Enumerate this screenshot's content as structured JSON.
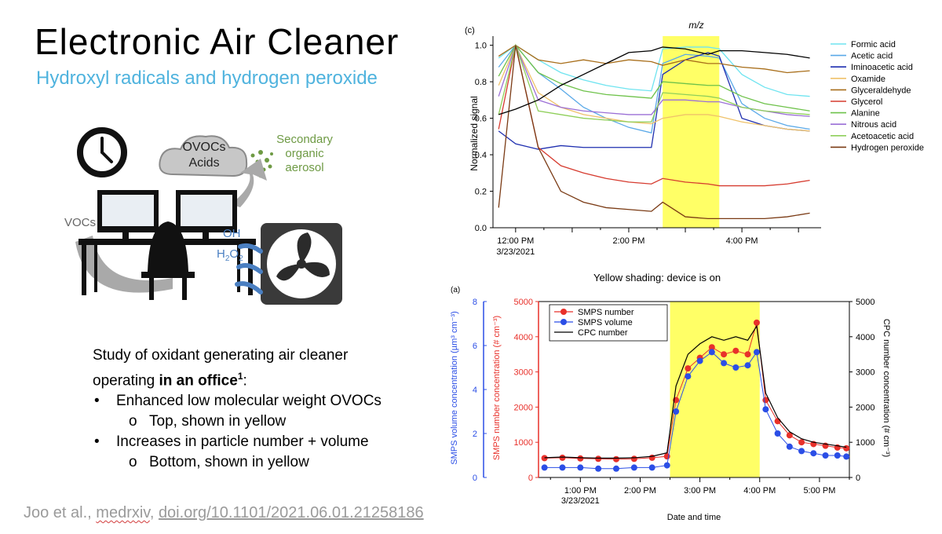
{
  "slide": {
    "title": "Electronic Air Cleaner",
    "subtitle": "Hydroxyl radicals and hydrogen peroxide",
    "study": {
      "intro_line1": "Study of oxidant generating air cleaner",
      "intro_line2_pre": "operating ",
      "intro_line2_bold": "in an office",
      "intro_line2_sup": "1",
      "intro_line2_post": ":",
      "bullet1": "Enhanced low molecular weight OVOCs",
      "sub1": "Top, shown in yellow",
      "bullet2": "Increases in particle number + volume",
      "sub2": "Bottom, shown in yellow",
      "bullet_glyph": "•",
      "sub_glyph": "o"
    },
    "citation": {
      "authors": "Joo et al., ",
      "source": "medrxiv",
      "sep": ", ",
      "doi": "doi.org/10.1101/2021.06.01.21258186"
    },
    "shading_note": "Yellow shading: device is on",
    "illustration": {
      "cloud_line1": "OVOCs",
      "cloud_line2": "Acids",
      "soa_line1": "Secondary",
      "soa_line2": "organic",
      "soa_line3": "aerosol",
      "vocs": "VOCs",
      "oh": "OH",
      "h2o2_base": "H",
      "h2o2_sub": "2",
      "h2o2_o": "O",
      "h2o2_sub2": "2",
      "icons": [
        "clock-icon",
        "cloud-icon",
        "monitor-icon",
        "chair-icon",
        "desk-icon",
        "fan-icon",
        "arrow-icon",
        "aerosol-dots-icon"
      ]
    },
    "colors": {
      "subtitle": "#4fb3de",
      "highlight": "#ffff66",
      "soa_green": "#6e9a44",
      "oh_blue": "#4a7fc1"
    }
  },
  "chart_data": [
    {
      "type": "line",
      "panel_label": "(c)",
      "title": "m/z",
      "xlabel": "",
      "ylabel": "Normalized signal",
      "x_unit": "hours since 12:00 PM 3/23/2021",
      "x": [
        -0.3,
        0,
        0.4,
        0.8,
        1.2,
        1.6,
        2.0,
        2.4,
        2.6,
        3.0,
        3.4,
        3.6,
        4.0,
        4.4,
        4.8,
        5.2
      ],
      "xlim": [
        -0.4,
        5.4
      ],
      "ylim": [
        0.0,
        1.05
      ],
      "xticks": [
        {
          "value": 0,
          "label": "12:00 PM",
          "label2": "3/23/2021"
        },
        {
          "value": 2,
          "label": "2:00 PM"
        },
        {
          "value": 4,
          "label": "4:00 PM"
        }
      ],
      "yticks": [
        0.0,
        0.2,
        0.4,
        0.6,
        0.8,
        1.0
      ],
      "highlight": {
        "x0": 2.6,
        "x1": 3.6
      },
      "grid": false,
      "legend_position": "right",
      "series": [
        {
          "name": "Formic acid",
          "color": "#6fe4f0",
          "values": [
            0.93,
            1.0,
            0.92,
            0.85,
            0.81,
            0.78,
            0.76,
            0.75,
            0.98,
            0.99,
            0.99,
            0.98,
            0.84,
            0.77,
            0.73,
            0.72
          ]
        },
        {
          "name": "Acetic acid",
          "color": "#5aa9e8",
          "values": [
            0.88,
            1.0,
            0.85,
            0.76,
            0.66,
            0.6,
            0.55,
            0.52,
            0.9,
            0.95,
            0.94,
            0.93,
            0.68,
            0.6,
            0.56,
            0.54
          ]
        },
        {
          "name": "Iminoacetic acid",
          "color": "#1f2fb0",
          "values": [
            0.53,
            0.46,
            0.43,
            0.45,
            0.44,
            0.44,
            0.44,
            0.44,
            0.84,
            0.92,
            0.96,
            0.94,
            0.6,
            0.56,
            0.54,
            0.53
          ]
        },
        {
          "name": "Oxamide",
          "color": "#efc26a",
          "values": [
            0.78,
            1.0,
            0.74,
            0.66,
            0.62,
            0.6,
            0.58,
            0.57,
            0.6,
            0.62,
            0.62,
            0.61,
            0.58,
            0.56,
            0.54,
            0.53
          ]
        },
        {
          "name": "Glyceraldehyde",
          "color": "#a86e1a",
          "values": [
            0.94,
            1.0,
            0.92,
            0.9,
            0.92,
            0.9,
            0.92,
            0.91,
            0.89,
            0.92,
            0.9,
            0.9,
            0.88,
            0.87,
            0.85,
            0.86
          ]
        },
        {
          "name": "Glycerol",
          "color": "#d63b2f",
          "values": [
            0.54,
            1.0,
            0.44,
            0.34,
            0.3,
            0.27,
            0.25,
            0.24,
            0.27,
            0.25,
            0.24,
            0.23,
            0.23,
            0.23,
            0.24,
            0.26
          ]
        },
        {
          "name": "Alanine",
          "color": "#6ec24a",
          "values": [
            0.83,
            1.0,
            0.85,
            0.79,
            0.75,
            0.73,
            0.72,
            0.71,
            0.8,
            0.79,
            0.78,
            0.78,
            0.72,
            0.68,
            0.66,
            0.64
          ]
        },
        {
          "name": "Nitrous acid",
          "color": "#9b6fd6",
          "values": [
            0.72,
            1.0,
            0.7,
            0.66,
            0.64,
            0.63,
            0.62,
            0.62,
            0.7,
            0.7,
            0.69,
            0.69,
            0.66,
            0.64,
            0.62,
            0.61
          ]
        },
        {
          "name": "Acetoacetic acid",
          "color": "#8fcf5a",
          "values": [
            0.62,
            1.0,
            0.64,
            0.62,
            0.6,
            0.59,
            0.58,
            0.58,
            0.74,
            0.73,
            0.72,
            0.71,
            0.66,
            0.64,
            0.63,
            0.62
          ]
        },
        {
          "name": "Hydrogen peroxide",
          "color": "#7a3a14",
          "values": [
            0.11,
            1.0,
            0.44,
            0.2,
            0.14,
            0.11,
            0.1,
            0.09,
            0.14,
            0.06,
            0.05,
            0.05,
            0.05,
            0.05,
            0.06,
            0.08
          ]
        },
        {
          "name": "",
          "color": "#000000",
          "values": [
            0.62,
            0.65,
            0.7,
            0.78,
            0.84,
            0.9,
            0.96,
            0.97,
            0.99,
            0.98,
            0.95,
            0.97,
            0.97,
            0.96,
            0.95,
            0.93
          ]
        }
      ]
    },
    {
      "type": "line",
      "panel_label": "(a)",
      "title": "",
      "xlabel": "Date and time",
      "ylabel_left": "SMPS volume concentration (µm³ cm⁻³)",
      "ylabel_mid": "SMPS number concentration (# cm⁻³)",
      "ylabel_right": "CPC number concentration (# cm⁻³)",
      "x_unit": "hours since 12:00 PM 3/23/2021",
      "xlim": [
        0.3,
        5.5
      ],
      "ylim_left": [
        0,
        8
      ],
      "ylim_mid": [
        0,
        5000
      ],
      "ylim_right": [
        0,
        5000
      ],
      "yticks_left": [
        0,
        2,
        4,
        6,
        8
      ],
      "yticks_mid": [
        0,
        1000,
        2000,
        3000,
        4000,
        5000
      ],
      "yticks_right": [
        0,
        1000,
        2000,
        3000,
        4000,
        5000
      ],
      "xticks": [
        {
          "value": 1,
          "label": "1:00 PM",
          "label2": "3/23/2021"
        },
        {
          "value": 2,
          "label": "2:00 PM"
        },
        {
          "value": 3,
          "label": "3:00 PM"
        },
        {
          "value": 4,
          "label": "4:00 PM"
        },
        {
          "value": 5,
          "label": "5:00 PM"
        }
      ],
      "highlight": {
        "x0": 2.5,
        "x1": 4.0
      },
      "grid": false,
      "legend_position": "top-left",
      "x": [
        0.4,
        0.7,
        1.0,
        1.3,
        1.6,
        1.9,
        2.2,
        2.45,
        2.6,
        2.8,
        3.0,
        3.2,
        3.4,
        3.6,
        3.8,
        3.95,
        4.1,
        4.3,
        4.5,
        4.7,
        4.9,
        5.1,
        5.3,
        5.45
      ],
      "series": [
        {
          "name": "SMPS number",
          "axis": "mid",
          "color": "#e8302a",
          "values": [
            550,
            560,
            540,
            530,
            520,
            530,
            560,
            600,
            2200,
            3100,
            3400,
            3700,
            3500,
            3600,
            3500,
            4400,
            2200,
            1600,
            1200,
            1000,
            950,
            900,
            850,
            830
          ]
        },
        {
          "name": "SMPS volume",
          "axis": "left",
          "color": "#2b4ee6",
          "values": [
            0.45,
            0.45,
            0.45,
            0.4,
            0.4,
            0.45,
            0.45,
            0.55,
            3.0,
            4.6,
            5.3,
            5.7,
            5.2,
            5.0,
            5.1,
            5.7,
            3.1,
            2.0,
            1.4,
            1.2,
            1.1,
            1.0,
            1.0,
            0.95
          ]
        },
        {
          "name": "CPC number",
          "axis": "right",
          "color": "#000000",
          "values": [
            560,
            580,
            560,
            550,
            550,
            560,
            600,
            700,
            2600,
            3500,
            3800,
            4000,
            3900,
            4000,
            3900,
            4300,
            2400,
            1700,
            1300,
            1100,
            1000,
            950,
            900,
            860
          ]
        }
      ]
    }
  ]
}
